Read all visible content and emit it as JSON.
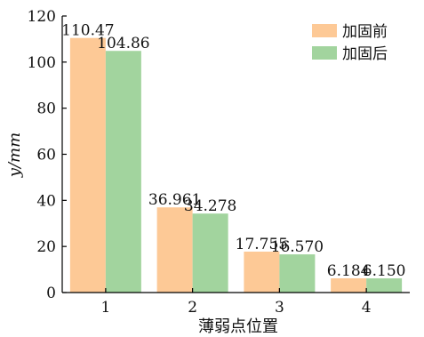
{
  "chart_data": {
    "type": "bar",
    "categories": [
      "1",
      "2",
      "3",
      "4"
    ],
    "series": [
      {
        "name": "加固前",
        "values": [
          110.47,
          36.961,
          17.755,
          6.184
        ],
        "labels": [
          "110.47",
          "36.961",
          "17.755",
          "6.184"
        ],
        "color": "#FDC996"
      },
      {
        "name": "加固后",
        "values": [
          104.86,
          34.278,
          16.57,
          6.15
        ],
        "labels": [
          "104.86",
          "34.278",
          "16.570",
          "6.150"
        ],
        "color": "#A2D49E"
      }
    ],
    "xlabel": "薄弱点位置",
    "ylabel": "y/mm",
    "ylim": [
      0,
      120
    ],
    "yticks": [
      0,
      20,
      40,
      60,
      80,
      100,
      120
    ],
    "grid": false,
    "legend": "top-right"
  }
}
